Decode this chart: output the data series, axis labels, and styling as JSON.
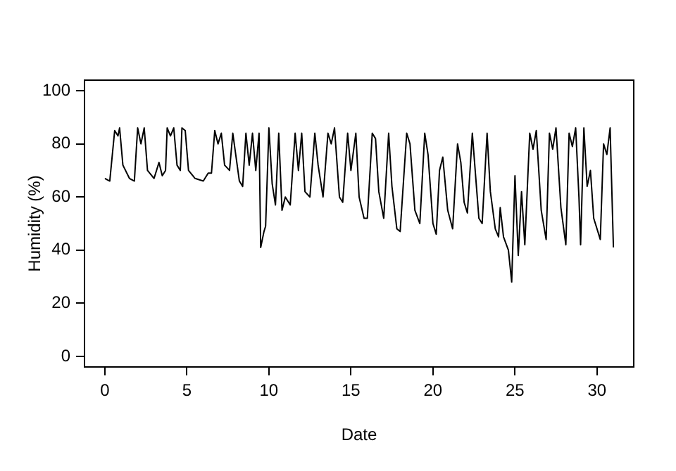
{
  "chart_data": {
    "type": "line",
    "xlabel": "Date",
    "ylabel": "Humidity (%)",
    "xlim": [
      -1.24,
      32.24
    ],
    "ylim": [
      -4,
      104
    ],
    "xticks": [
      0,
      5,
      10,
      15,
      20,
      25,
      30
    ],
    "yticks": [
      0,
      20,
      40,
      60,
      80,
      100
    ],
    "grid": false,
    "legend": false,
    "marker": "none",
    "line_style": "solid",
    "series": [
      {
        "color": "#000000",
        "x": [
          0,
          0.3,
          0.6,
          0.8,
          0.9,
          1.1,
          1.5,
          1.8,
          2.0,
          2.2,
          2.4,
          2.6,
          3.0,
          3.3,
          3.5,
          3.7,
          3.8,
          4.0,
          4.2,
          4.4,
          4.6,
          4.7,
          4.9,
          5.1,
          5.5,
          6.0,
          6.3,
          6.5,
          6.7,
          6.9,
          7.1,
          7.3,
          7.6,
          7.8,
          8.0,
          8.2,
          8.4,
          8.6,
          8.8,
          9.0,
          9.2,
          9.4,
          9.5,
          9.7,
          9.8,
          10.0,
          10.2,
          10.4,
          10.6,
          10.8,
          11.0,
          11.3,
          11.6,
          11.8,
          12.0,
          12.2,
          12.5,
          12.8,
          13.0,
          13.3,
          13.6,
          13.8,
          14.0,
          14.3,
          14.5,
          14.8,
          15.0,
          15.3,
          15.5,
          15.8,
          16.0,
          16.3,
          16.5,
          16.7,
          17.0,
          17.3,
          17.5,
          17.8,
          18.0,
          18.4,
          18.6,
          18.9,
          19.2,
          19.5,
          19.7,
          20.0,
          20.2,
          20.4,
          20.6,
          20.9,
          21.2,
          21.5,
          21.7,
          21.9,
          22.1,
          22.4,
          22.6,
          22.8,
          23.0,
          23.3,
          23.5,
          23.8,
          24.0,
          24.1,
          24.3,
          24.6,
          24.8,
          25.0,
          25.2,
          25.4,
          25.6,
          25.9,
          26.1,
          26.3,
          26.6,
          26.9,
          27.1,
          27.3,
          27.5,
          27.8,
          28.1,
          28.3,
          28.5,
          28.7,
          28.9,
          29.0,
          29.2,
          29.4,
          29.6,
          29.8,
          30.0,
          30.2,
          30.4,
          30.6,
          30.8,
          31.0
        ],
        "values": [
          67,
          66,
          85,
          83,
          86,
          72,
          67,
          66,
          86,
          80,
          86,
          70,
          67,
          73,
          68,
          70,
          86,
          83,
          86,
          72,
          70,
          86,
          85,
          70,
          67,
          66,
          69,
          69,
          85,
          80,
          84,
          72,
          70,
          84,
          75,
          66,
          64,
          84,
          72,
          84,
          70,
          84,
          41,
          47,
          49,
          86,
          65,
          57,
          84,
          55,
          60,
          57,
          84,
          70,
          84,
          62,
          60,
          84,
          72,
          60,
          84,
          80,
          86,
          60,
          58,
          84,
          70,
          84,
          60,
          52,
          52,
          84,
          82,
          62,
          52,
          84,
          64,
          48,
          47,
          84,
          80,
          55,
          50,
          84,
          76,
          50,
          46,
          70,
          75,
          55,
          48,
          80,
          73,
          58,
          54,
          84,
          68,
          52,
          50,
          84,
          62,
          48,
          45,
          56,
          45,
          40,
          28,
          68,
          38,
          62,
          42,
          84,
          78,
          85,
          55,
          44,
          84,
          78,
          86,
          56,
          42,
          84,
          79,
          86,
          60,
          42,
          86,
          64,
          70,
          52,
          48,
          44,
          80,
          76,
          86,
          41
        ]
      }
    ]
  }
}
